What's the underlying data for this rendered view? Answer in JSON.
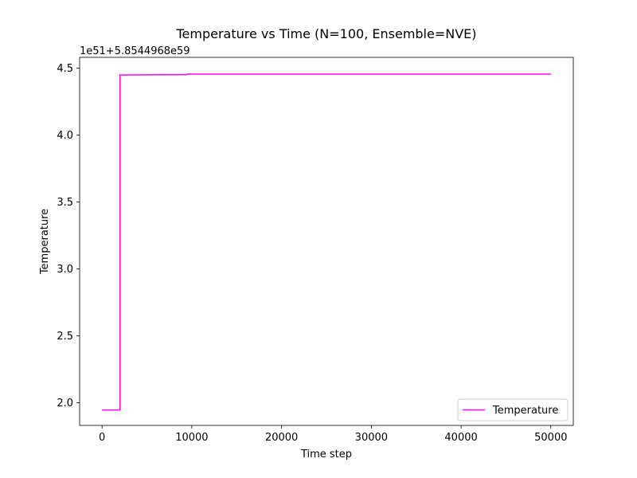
{
  "chart_data": {
    "type": "line",
    "title": "Temperature vs Time (N=100, Ensemble=NVE)",
    "xlabel": "Time step",
    "ylabel": "Temperature",
    "offset_text": "1e51+5.8544968e59",
    "xlim": [
      -2500,
      52500
    ],
    "ylim": [
      1.83,
      4.58
    ],
    "x_ticks": [
      0,
      10000,
      20000,
      30000,
      40000,
      50000
    ],
    "x_tick_labels": [
      "0",
      "10000",
      "20000",
      "30000",
      "40000",
      "50000"
    ],
    "y_ticks": [
      2.0,
      2.5,
      3.0,
      3.5,
      4.0,
      4.5
    ],
    "y_tick_labels": [
      "2.0",
      "2.5",
      "3.0",
      "3.5",
      "4.0",
      "4.5"
    ],
    "grid": false,
    "legend_position": "lower-right",
    "series": [
      {
        "name": "Temperature",
        "color": "#ff00ff",
        "x": [
          0,
          2000,
          2000,
          4000,
          9500,
          9500,
          50000
        ],
        "y": [
          1.945,
          1.945,
          4.448,
          4.449,
          4.451,
          4.455,
          4.455
        ]
      }
    ]
  }
}
